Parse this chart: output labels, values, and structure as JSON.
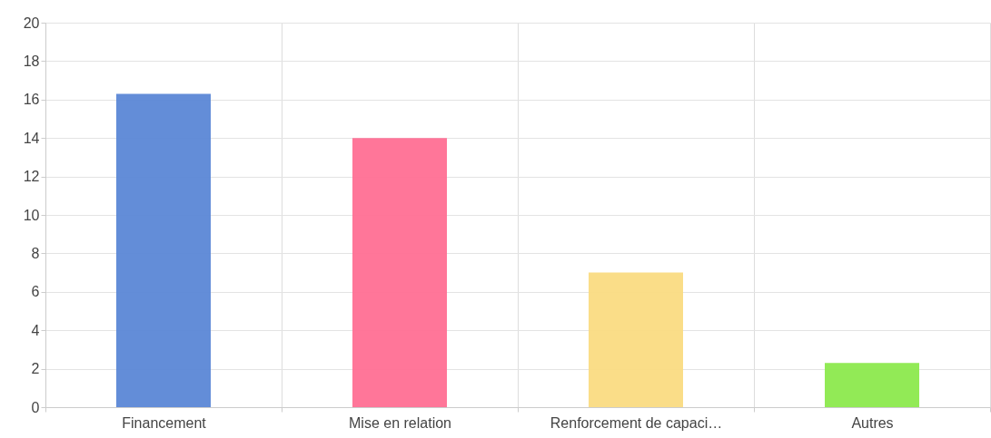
{
  "chart_data": {
    "type": "bar",
    "categories": [
      "Financement",
      "Mise en relation",
      "Renforcement de capaci…",
      "Autres"
    ],
    "values": [
      16.3,
      14,
      7,
      2.3
    ],
    "colors": [
      "#5b87d6",
      "#ff6f94",
      "#fadb82",
      "#8ce94d"
    ],
    "ylim": [
      0,
      20
    ],
    "yticks": [
      0,
      2,
      4,
      6,
      8,
      10,
      12,
      14,
      16,
      18,
      20
    ],
    "grid": true
  }
}
